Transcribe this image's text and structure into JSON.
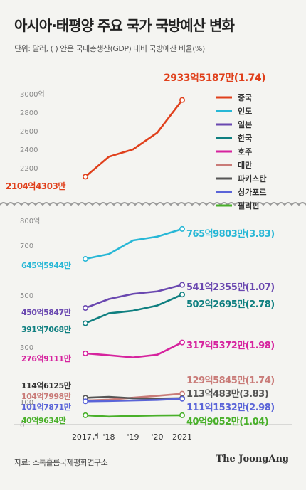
{
  "title": "아시아·태평양 주요 국가 국방예산 변화",
  "subtitle": "단위: 달러, ( ) 안은 국내총생산(GDP) 대비 국방예산 비율(%)",
  "source": "자료: 스톡홀름국제평화연구소",
  "logo": "The JoongAng",
  "chart_data": {
    "type": "line",
    "x": [
      "2017년",
      "'18",
      "'19",
      "'20",
      "2021"
    ],
    "y_unit": "억 달러",
    "legend_position": "top-right",
    "grid": false,
    "axis_break": true,
    "upper_panel": {
      "ylim": [
        2000,
        3100
      ],
      "yticks": [
        2200,
        2400,
        2600,
        2800,
        3000
      ],
      "ytick_labels": [
        "2200",
        "2400",
        "2600",
        "2800",
        "3000억"
      ],
      "series_names": [
        "중국"
      ]
    },
    "lower_panel": {
      "ylim": [
        0,
        820
      ],
      "yticks": [
        0,
        100,
        300,
        500,
        700,
        800
      ],
      "ytick_labels": [
        "0",
        "100",
        "300",
        "500",
        "700",
        "800억"
      ],
      "series_names": [
        "인도",
        "일본",
        "한국",
        "호주",
        "대만",
        "파키스탄",
        "싱가포르",
        "필리핀"
      ]
    },
    "series": [
      {
        "name": "중국",
        "color": "#e0401c",
        "values": [
          2104.43,
          2320,
          2400,
          2580,
          2933.52
        ],
        "start_label": "2104억4303만",
        "end_label": "2933억5187만(1.74)"
      },
      {
        "name": "인도",
        "color": "#27b7d6",
        "values": [
          645.59,
          665,
          720,
          735,
          765.98
        ],
        "start_label": "645억5944만",
        "end_label": "765억9803만(3.83)"
      },
      {
        "name": "일본",
        "color": "#6a48b0",
        "values": [
          450.58,
          485,
          505,
          515,
          541.24
        ],
        "start_label": "450억5847만",
        "end_label": "541억2355만(1.07)"
      },
      {
        "name": "한국",
        "color": "#0f7f80",
        "values": [
          391.71,
          430,
          440,
          460,
          502.27
        ],
        "start_label": "391억7068만",
        "end_label": "502억2695만(2.78)"
      },
      {
        "name": "호주",
        "color": "#d6239e",
        "values": [
          276.91,
          270,
          262,
          272,
          317.54
        ],
        "start_label": "276억9111만",
        "end_label": "317억5372만(1.98)"
      },
      {
        "name": "대만",
        "color": "#c97b78",
        "values": [
          104.8,
          108,
          115,
          122,
          129.58
        ],
        "start_label": "104억7998만",
        "end_label": "129억5845만(1.74)"
      },
      {
        "name": "파키스탄",
        "color": "#555555",
        "values": [
          114.61,
          118,
          113,
          112,
          113.05
        ],
        "start_label": "114억6125만",
        "end_label": "113억483만(3.83)"
      },
      {
        "name": "싱가포르",
        "color": "#5a64d8",
        "values": [
          101.79,
          103,
          105,
          107,
          111.15
        ],
        "start_label": "101억7871만",
        "end_label": "111억1532만(2.98)"
      },
      {
        "name": "필리핀",
        "color": "#49b02a",
        "values": [
          40.96,
          35,
          38,
          40,
          40.91
        ],
        "start_label": "40억9634만",
        "end_label": "40억9052만(1.04)"
      }
    ]
  }
}
